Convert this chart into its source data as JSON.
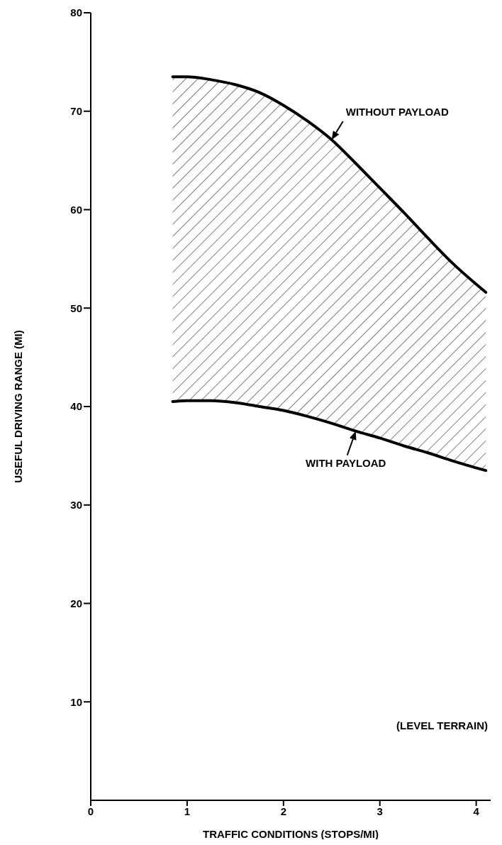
{
  "chart_data": {
    "type": "line",
    "xlabel": "TRAFFIC CONDITIONS (STOPS/MI)",
    "ylabel": "USEFUL DRIVING RANGE (MI)",
    "x": [
      0.85,
      1.0,
      1.25,
      1.5,
      1.75,
      2.0,
      2.25,
      2.5,
      2.75,
      3.0,
      3.25,
      3.5,
      3.75,
      4.1
    ],
    "series": [
      {
        "name": "WITHOUT PAYLOAD",
        "color": "#000000",
        "values": [
          73.5,
          73.5,
          73.2,
          72.7,
          71.9,
          70.6,
          69.0,
          67.1,
          64.7,
          62.2,
          59.7,
          57.1,
          54.6,
          51.6
        ],
        "lower": [
          40.5,
          40.6,
          40.6,
          40.4,
          40.0,
          39.6,
          39.0,
          38.3,
          37.5,
          36.8,
          36.0,
          35.3,
          34.5,
          33.5
        ],
        "upper": [
          73.5,
          73.5,
          73.2,
          72.7,
          71.9,
          70.6,
          69.0,
          67.1,
          64.7,
          62.2,
          59.7,
          57.1,
          54.6,
          51.6
        ]
      },
      {
        "name": "WITH PAYLOAD",
        "color": "#000000",
        "values": [
          40.5,
          40.6,
          40.6,
          40.4,
          40.0,
          39.6,
          39.0,
          38.3,
          37.5,
          36.8,
          36.0,
          35.3,
          34.5,
          33.5
        ]
      }
    ],
    "xlim": [
      0,
      4.15
    ],
    "xticks": [
      0,
      1,
      2,
      3,
      4
    ],
    "ylim": [
      0,
      80
    ],
    "yticks": [
      10,
      20,
      30,
      40,
      50,
      60,
      70,
      80
    ],
    "annotations": [
      "(LEVEL TERRAIN)"
    ]
  }
}
